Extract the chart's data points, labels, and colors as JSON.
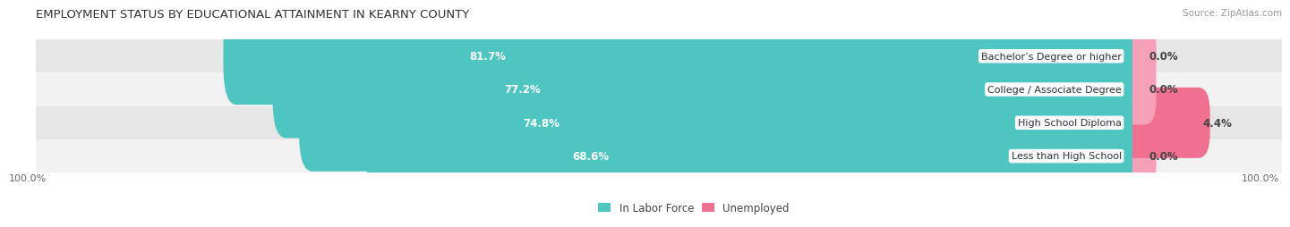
{
  "title": "EMPLOYMENT STATUS BY EDUCATIONAL ATTAINMENT IN KEARNY COUNTY",
  "source": "Source: ZipAtlas.com",
  "categories": [
    "Less than High School",
    "High School Diploma",
    "College / Associate Degree",
    "Bachelor’s Degree or higher"
  ],
  "labor_force": [
    68.6,
    74.8,
    77.2,
    81.7
  ],
  "unemployed": [
    0.0,
    4.4,
    0.0,
    0.0
  ],
  "labor_force_color": "#4ec5c1",
  "unemployed_color": "#f07090",
  "unemployed_color_light": "#f5a0b8",
  "row_bg_color_light": "#f2f2f2",
  "row_bg_color_dark": "#e6e6e6",
  "label_color_lf": "#ffffff",
  "axis_label_left": "100.0%",
  "axis_label_right": "100.0%",
  "max_lf": 100.0,
  "max_unemp": 10.0,
  "title_fontsize": 9.5,
  "source_fontsize": 7.5,
  "bar_label_fontsize": 8.5,
  "category_fontsize": 8,
  "legend_fontsize": 8.5,
  "axis_tick_fontsize": 8
}
